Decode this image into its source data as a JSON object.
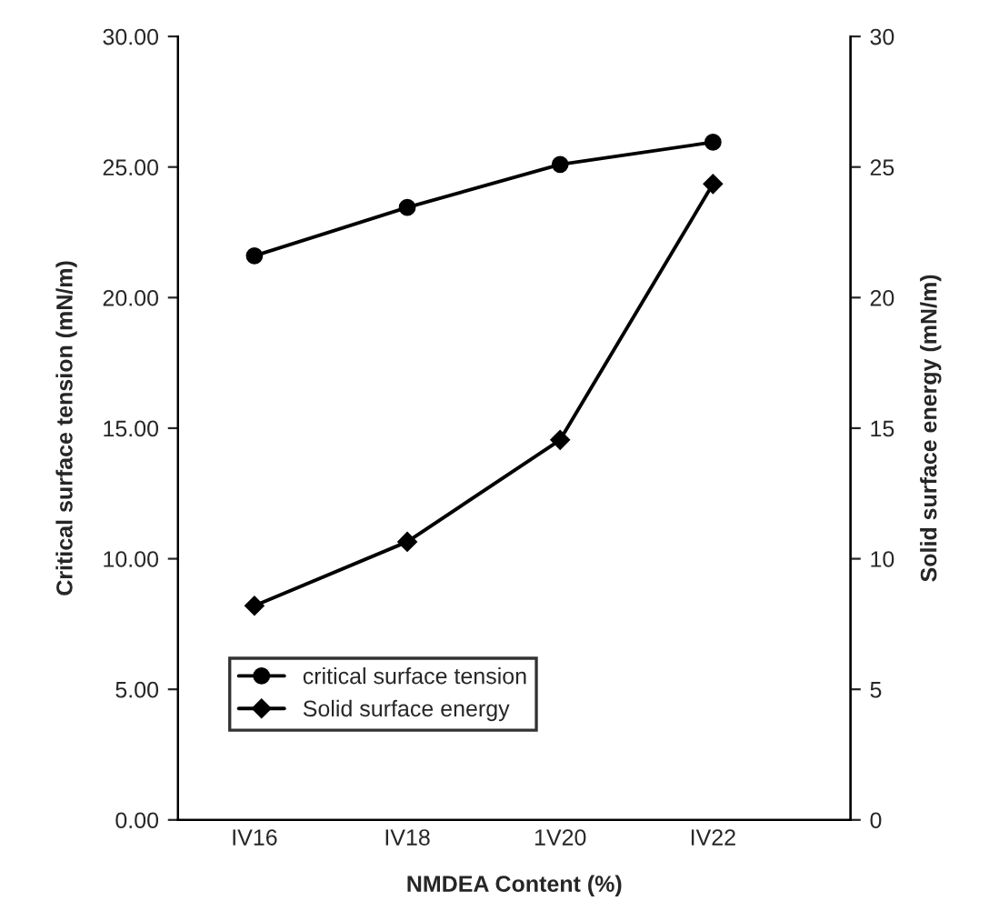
{
  "chart_data": {
    "type": "line",
    "xlabel": "NMDEA Content (%)",
    "ylabel": "Critical surface tension (mN/m)",
    "y2label": "Solid surface energy (mN/m)",
    "categories": [
      "IV16",
      "IV18",
      "1V20",
      "IV22"
    ],
    "series": [
      {
        "name": "critical surface tension",
        "color": "#000000",
        "marker": "circle",
        "values": [
          21.6,
          23.45,
          25.1,
          25.95
        ]
      },
      {
        "name": "Solid surface energy",
        "color": "#000000",
        "marker": "diamond",
        "values": [
          8.2,
          10.65,
          14.55,
          24.35
        ]
      }
    ],
    "ylim": [
      0,
      30
    ],
    "yticks": [
      {
        "value": 0,
        "label": "0.00"
      },
      {
        "value": 5,
        "label": "5.00"
      },
      {
        "value": 10,
        "label": "10.00"
      },
      {
        "value": 15,
        "label": "15.00"
      },
      {
        "value": 20,
        "label": "20.00"
      },
      {
        "value": 25,
        "label": "25.00"
      },
      {
        "value": 30,
        "label": "30.00"
      }
    ],
    "y2lim": [
      0,
      30
    ],
    "y2ticks": [
      0,
      5,
      10,
      15,
      20,
      25,
      30
    ],
    "grid": false,
    "legend": "bottom left",
    "line_style": "solid"
  }
}
